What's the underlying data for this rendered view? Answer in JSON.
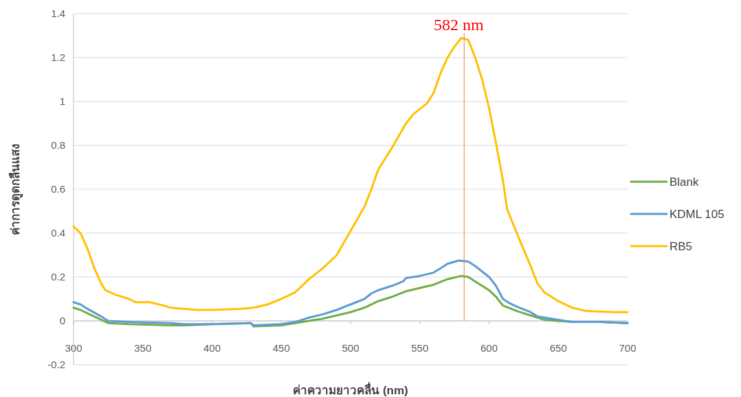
{
  "chart_data": {
    "type": "line",
    "xlabel": "ค่าความยาวคลื่น (nm)",
    "ylabel": "ค่าการดูดกลืนแสง",
    "xlim": [
      300,
      700
    ],
    "xticks": [
      300,
      350,
      400,
      450,
      500,
      550,
      600,
      650,
      700
    ],
    "ylim": [
      -0.2,
      1.4
    ],
    "yticks": [
      -0.2,
      0,
      0.2,
      0.4,
      0.6,
      0.8,
      1,
      1.2,
      1.4
    ],
    "grid": "y",
    "legend": "right",
    "marker": "none",
    "line_style": "solid",
    "ref_lines": [
      {
        "axis": "x",
        "value": 582,
        "label": "582 nm",
        "color": "#ed7d31"
      }
    ],
    "series": [
      {
        "name": "Blank",
        "color": "#70ad47",
        "x": [
          300,
          305,
          310,
          320,
          325,
          340,
          370,
          380,
          400,
          428,
          430,
          450,
          460,
          470,
          480,
          490,
          500,
          510,
          520,
          530,
          540,
          550,
          560,
          570,
          580,
          585,
          590,
          600,
          605,
          610,
          620,
          630,
          640,
          660,
          680,
          700
        ],
        "values": [
          0.06,
          0.05,
          0.035,
          0.005,
          -0.01,
          -0.015,
          -0.02,
          -0.02,
          -0.015,
          -0.01,
          -0.025,
          -0.02,
          -0.01,
          0.0,
          0.01,
          0.025,
          0.04,
          0.06,
          0.09,
          0.11,
          0.135,
          0.15,
          0.165,
          0.19,
          0.205,
          0.2,
          0.18,
          0.14,
          0.11,
          0.07,
          0.045,
          0.025,
          0.005,
          -0.005,
          -0.005,
          -0.01
        ]
      },
      {
        "name": "KDML 105",
        "color": "#5b9bd5",
        "x": [
          300,
          305,
          310,
          320,
          325,
          340,
          370,
          380,
          400,
          428,
          430,
          450,
          460,
          465,
          470,
          480,
          490,
          500,
          510,
          515,
          520,
          530,
          538,
          540,
          550,
          560,
          565,
          570,
          578,
          585,
          590,
          600,
          605,
          610,
          615,
          620,
          630,
          635,
          650,
          660,
          680,
          700
        ],
        "values": [
          0.085,
          0.075,
          0.055,
          0.02,
          0.0,
          -0.005,
          -0.01,
          -0.015,
          -0.015,
          -0.01,
          -0.02,
          -0.015,
          -0.005,
          0.005,
          0.015,
          0.03,
          0.05,
          0.075,
          0.1,
          0.125,
          0.14,
          0.16,
          0.18,
          0.195,
          0.205,
          0.22,
          0.24,
          0.26,
          0.275,
          0.27,
          0.25,
          0.2,
          0.16,
          0.1,
          0.08,
          0.065,
          0.04,
          0.02,
          0.005,
          -0.005,
          -0.005,
          -0.01
        ]
      },
      {
        "name": "RB5",
        "color": "#ffc000",
        "x": [
          300,
          305,
          310,
          315,
          320,
          323,
          330,
          340,
          345,
          355,
          365,
          370,
          380,
          390,
          400,
          410,
          420,
          430,
          440,
          450,
          460,
          470,
          480,
          490,
          500,
          510,
          515,
          520,
          530,
          540,
          545,
          555,
          560,
          565,
          570,
          575,
          580,
          585,
          590,
          595,
          600,
          605,
          610,
          613,
          620,
          630,
          635,
          640,
          650,
          660,
          670,
          690,
          700
        ],
        "values": [
          0.43,
          0.4,
          0.33,
          0.24,
          0.17,
          0.14,
          0.12,
          0.1,
          0.085,
          0.085,
          0.07,
          0.06,
          0.055,
          0.05,
          0.05,
          0.052,
          0.055,
          0.06,
          0.075,
          0.1,
          0.13,
          0.19,
          0.24,
          0.3,
          0.41,
          0.52,
          0.6,
          0.69,
          0.79,
          0.9,
          0.94,
          0.99,
          1.04,
          1.13,
          1.2,
          1.25,
          1.29,
          1.28,
          1.2,
          1.1,
          0.97,
          0.81,
          0.64,
          0.51,
          0.4,
          0.25,
          0.17,
          0.13,
          0.09,
          0.06,
          0.045,
          0.04,
          0.04
        ]
      }
    ]
  }
}
